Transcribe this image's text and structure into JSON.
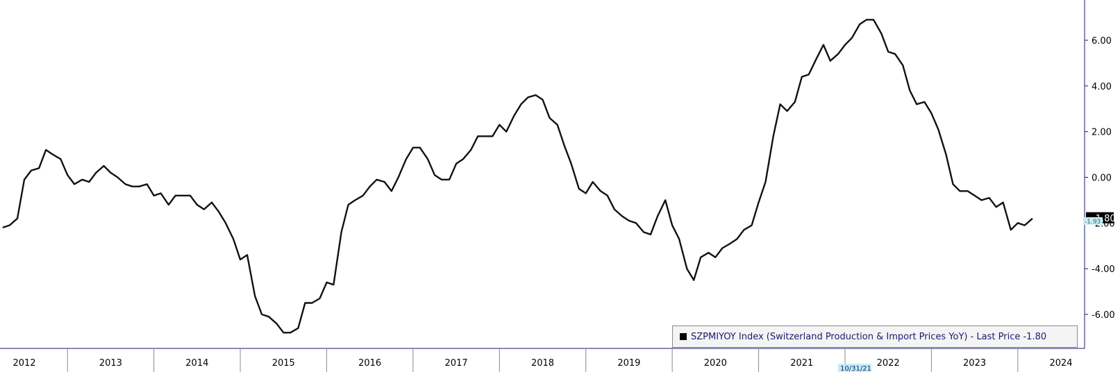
{
  "chart_data": {
    "type": "line",
    "xlim": [
      2011.75,
      2024.2
    ],
    "ylim": [
      -7.0,
      7.8
    ],
    "yticks": [
      6,
      4,
      2,
      0,
      -2,
      -4,
      -6
    ],
    "ytick_labels": [
      "6.00",
      "4.00",
      "2.00",
      "0.00",
      "-2.00",
      "-4.00",
      "-6.00"
    ],
    "xtick_labels": [
      "2012",
      "2013",
      "2014",
      "2015",
      "2016",
      "2017",
      "2018",
      "2019",
      "2020",
      "2021",
      "2022",
      "2023",
      "2024"
    ],
    "series": [
      {
        "name": "SZPMIYOY Index (Switzerland Production & Import Prices YoY)",
        "color": "#111111",
        "points": [
          [
            2011.75,
            -2.2
          ],
          [
            2011.83,
            -2.1
          ],
          [
            2011.92,
            -1.8
          ],
          [
            2012.0,
            -0.1
          ],
          [
            2012.08,
            0.3
          ],
          [
            2012.17,
            0.4
          ],
          [
            2012.25,
            1.2
          ],
          [
            2012.33,
            1.0
          ],
          [
            2012.42,
            0.8
          ],
          [
            2012.5,
            0.1
          ],
          [
            2012.58,
            -0.3
          ],
          [
            2012.67,
            -0.1
          ],
          [
            2012.75,
            -0.2
          ],
          [
            2012.83,
            0.2
          ],
          [
            2012.92,
            0.5
          ],
          [
            2013.0,
            0.2
          ],
          [
            2013.08,
            0.0
          ],
          [
            2013.17,
            -0.3
          ],
          [
            2013.25,
            -0.4
          ],
          [
            2013.33,
            -0.4
          ],
          [
            2013.42,
            -0.3
          ],
          [
            2013.5,
            -0.8
          ],
          [
            2013.58,
            -0.7
          ],
          [
            2013.67,
            -1.2
          ],
          [
            2013.75,
            -0.8
          ],
          [
            2013.83,
            -0.8
          ],
          [
            2013.92,
            -0.8
          ],
          [
            2014.0,
            -1.2
          ],
          [
            2014.08,
            -1.4
          ],
          [
            2014.17,
            -1.1
          ],
          [
            2014.25,
            -1.5
          ],
          [
            2014.33,
            -2.0
          ],
          [
            2014.42,
            -2.7
          ],
          [
            2014.5,
            -3.6
          ],
          [
            2014.58,
            -3.4
          ],
          [
            2014.67,
            -5.2
          ],
          [
            2014.75,
            -6.0
          ],
          [
            2014.83,
            -6.1
          ],
          [
            2014.92,
            -6.4
          ],
          [
            2015.0,
            -6.8
          ],
          [
            2015.08,
            -6.8
          ],
          [
            2015.17,
            -6.6
          ],
          [
            2015.25,
            -5.5
          ],
          [
            2015.33,
            -5.5
          ],
          [
            2015.42,
            -5.3
          ],
          [
            2015.5,
            -4.6
          ],
          [
            2015.58,
            -4.7
          ],
          [
            2015.67,
            -2.4
          ],
          [
            2015.75,
            -1.2
          ],
          [
            2015.83,
            -1.0
          ],
          [
            2015.92,
            -0.8
          ],
          [
            2016.0,
            -0.4
          ],
          [
            2016.08,
            -0.1
          ],
          [
            2016.17,
            -0.2
          ],
          [
            2016.25,
            -0.6
          ],
          [
            2016.33,
            0.0
          ],
          [
            2016.42,
            0.8
          ],
          [
            2016.5,
            1.3
          ],
          [
            2016.58,
            1.3
          ],
          [
            2016.67,
            0.8
          ],
          [
            2016.75,
            0.1
          ],
          [
            2016.83,
            -0.1
          ],
          [
            2016.92,
            -0.1
          ],
          [
            2017.0,
            0.6
          ],
          [
            2017.08,
            0.8
          ],
          [
            2017.17,
            1.2
          ],
          [
            2017.25,
            1.8
          ],
          [
            2017.33,
            1.8
          ],
          [
            2017.42,
            1.8
          ],
          [
            2017.5,
            2.3
          ],
          [
            2017.58,
            2.0
          ],
          [
            2017.67,
            2.7
          ],
          [
            2017.75,
            3.2
          ],
          [
            2017.83,
            3.5
          ],
          [
            2017.92,
            3.6
          ],
          [
            2018.0,
            3.4
          ],
          [
            2018.08,
            2.6
          ],
          [
            2018.17,
            2.3
          ],
          [
            2018.25,
            1.4
          ],
          [
            2018.33,
            0.6
          ],
          [
            2018.42,
            -0.5
          ],
          [
            2018.5,
            -0.7
          ],
          [
            2018.58,
            -0.2
          ],
          [
            2018.67,
            -0.6
          ],
          [
            2018.75,
            -0.8
          ],
          [
            2018.83,
            -1.4
          ],
          [
            2018.92,
            -1.7
          ],
          [
            2019.0,
            -1.9
          ],
          [
            2019.08,
            -2.0
          ],
          [
            2019.17,
            -2.4
          ],
          [
            2019.25,
            -2.5
          ],
          [
            2019.33,
            -1.7
          ],
          [
            2019.42,
            -1.0
          ],
          [
            2019.5,
            -2.1
          ],
          [
            2019.58,
            -2.7
          ],
          [
            2019.67,
            -4.0
          ],
          [
            2019.75,
            -4.5
          ],
          [
            2019.83,
            -3.5
          ],
          [
            2019.92,
            -3.3
          ],
          [
            2020.0,
            -3.5
          ],
          [
            2020.08,
            -3.1
          ],
          [
            2020.17,
            -2.9
          ],
          [
            2020.25,
            -2.7
          ],
          [
            2020.33,
            -2.3
          ],
          [
            2020.42,
            -2.1
          ],
          [
            2020.5,
            -1.1
          ],
          [
            2020.58,
            -0.2
          ],
          [
            2020.67,
            1.8
          ],
          [
            2020.75,
            3.2
          ],
          [
            2020.83,
            2.9
          ],
          [
            2020.92,
            3.3
          ],
          [
            2021.0,
            4.4
          ],
          [
            2021.08,
            4.5
          ],
          [
            2021.17,
            5.2
          ],
          [
            2021.25,
            5.8
          ],
          [
            2021.33,
            5.1
          ],
          [
            2021.42,
            5.4
          ],
          [
            2021.5,
            5.8
          ],
          [
            2021.58,
            6.1
          ],
          [
            2021.67,
            6.7
          ],
          [
            2021.75,
            6.9
          ],
          [
            2021.83,
            6.9
          ],
          [
            2021.92,
            6.3
          ],
          [
            2022.0,
            5.5
          ],
          [
            2022.08,
            5.4
          ],
          [
            2022.17,
            4.9
          ],
          [
            2022.25,
            3.8
          ],
          [
            2022.33,
            3.2
          ],
          [
            2022.42,
            3.3
          ],
          [
            2022.5,
            2.8
          ],
          [
            2022.58,
            2.1
          ],
          [
            2022.67,
            1.0
          ],
          [
            2022.75,
            -0.3
          ],
          [
            2022.83,
            -0.6
          ],
          [
            2022.92,
            -0.6
          ],
          [
            2023.0,
            -0.8
          ],
          [
            2023.08,
            -1.0
          ],
          [
            2023.17,
            -0.9
          ],
          [
            2023.25,
            -1.3
          ],
          [
            2023.33,
            -1.1
          ],
          [
            2023.42,
            -2.3
          ],
          [
            2023.5,
            -2.0
          ],
          [
            2023.58,
            -2.1
          ],
          [
            2023.67,
            -1.8
          ]
        ]
      }
    ],
    "last_price_label": "-1.80",
    "secondary_price_label": "-1.93",
    "date_marker_label": "10/31/21",
    "legend_text": "SZPMIYOY Index (Switzerland Production & Import Prices YoY) - Last Price -1.80",
    "grid": false,
    "legend_position": "bottom-right",
    "colors": {
      "line": "#111111",
      "last_price_badge": "#000000",
      "secondary_badge": "#cdeef0",
      "date_marker": "#bfeff2",
      "legend_text": "#1a1a6e"
    }
  }
}
